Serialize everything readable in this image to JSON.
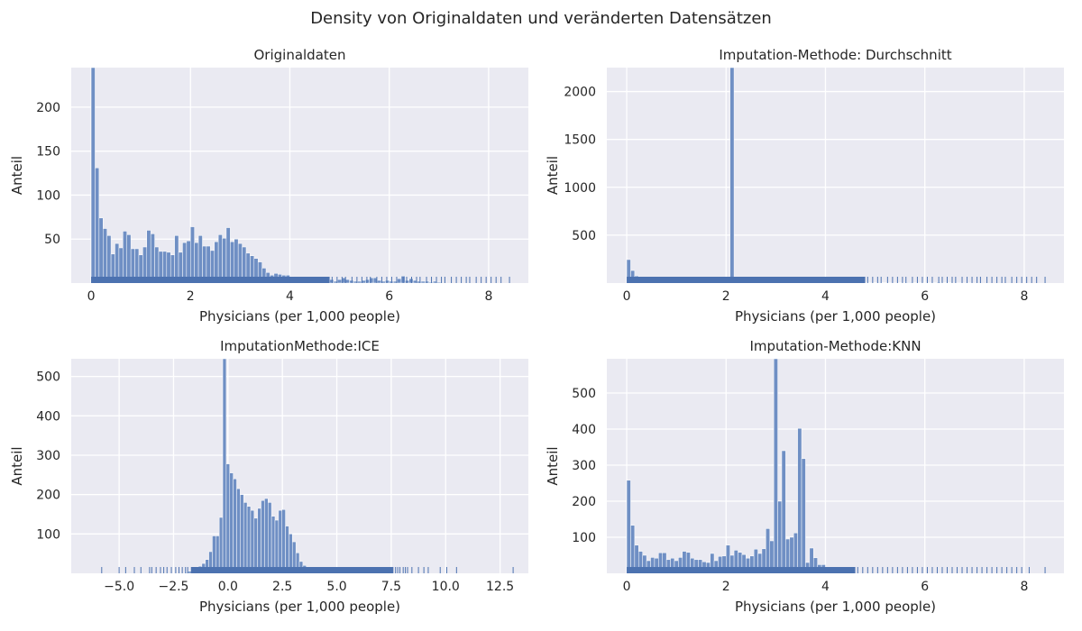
{
  "figure": {
    "title": "Density von Originaldaten und veränderten Datensätzen",
    "colors": {
      "bar": "#6f8fc4",
      "bar_edge": "#ffffff",
      "rug": "#4c72b0",
      "panel_bg": "#eaeaf2",
      "grid": "#ffffff"
    }
  },
  "chart_data": [
    {
      "type": "bar",
      "title": "Originaldaten",
      "xlabel": "Physicians (per 1,000 people)",
      "ylabel": "Anteil",
      "xlim": [
        -0.4,
        8.8
      ],
      "ylim": [
        0,
        245
      ],
      "xticks": [
        0,
        2,
        4,
        6,
        8
      ],
      "yticks": [
        50,
        100,
        150,
        200
      ],
      "bin_start": 0,
      "bin_width": 0.08,
      "values": [
        245,
        131,
        74,
        62,
        54,
        33,
        45,
        40,
        59,
        55,
        39,
        39,
        32,
        41,
        60,
        56,
        41,
        36,
        36,
        35,
        32,
        54,
        35,
        46,
        48,
        64,
        46,
        54,
        42,
        42,
        37,
        47,
        55,
        51,
        63,
        47,
        50,
        45,
        41,
        34,
        31,
        28,
        24,
        17,
        12,
        9,
        11,
        10,
        9,
        9,
        7,
        5,
        3,
        4,
        4,
        3,
        2,
        3,
        2,
        3,
        4,
        2,
        4,
        6,
        4,
        3,
        2,
        2,
        3,
        4,
        6,
        6,
        3,
        2,
        3,
        2,
        2,
        5,
        8,
        3,
        5,
        3,
        2,
        2,
        2,
        1,
        2,
        1
      ],
      "grid": true,
      "rug": [
        [
          0,
          4.8
        ],
        [
          4.85,
          4.95,
          5.05,
          5.12,
          5.25,
          5.35,
          5.45,
          5.55,
          5.62,
          5.75,
          5.85,
          5.95,
          6.05,
          6.15,
          6.28,
          6.35,
          6.45,
          6.55,
          6.62,
          6.75,
          6.85,
          6.95,
          7.05,
          7.12,
          7.25,
          7.35,
          7.45,
          7.55,
          7.62,
          7.75,
          7.85,
          7.95,
          8.05,
          8.15,
          8.25,
          8.42
        ]
      ]
    },
    {
      "type": "bar",
      "title": "Imputation-Methode: Durchschnitt",
      "xlabel": "Physicians (per 1,000 people)",
      "ylabel": "Anteil",
      "xlim": [
        -0.4,
        8.8
      ],
      "ylim": [
        0,
        2250
      ],
      "xticks": [
        0,
        2,
        4,
        6,
        8
      ],
      "yticks": [
        500,
        1000,
        1500,
        2000
      ],
      "bin_start": 0,
      "bin_width": 0.08,
      "values": [
        245,
        131,
        74,
        62,
        54,
        33,
        45,
        40,
        59,
        55,
        39,
        39,
        32,
        41,
        60,
        56,
        41,
        36,
        36,
        35,
        32,
        54,
        35,
        46,
        48,
        64,
        2250,
        54,
        42,
        42,
        37,
        47,
        55,
        51,
        63,
        47,
        50,
        45,
        41,
        34,
        31,
        28,
        24,
        17,
        12,
        9,
        11,
        10,
        9,
        9,
        7,
        5,
        3,
        4,
        4,
        3,
        2,
        3,
        2,
        3,
        4,
        2,
        4,
        6,
        4,
        3,
        2,
        2,
        3,
        4,
        6,
        6,
        3,
        2,
        3,
        2,
        2,
        5,
        8,
        3,
        5,
        3,
        2,
        2,
        2,
        1,
        2,
        1
      ],
      "grid": true,
      "rug": [
        [
          0,
          4.8
        ],
        [
          4.85,
          4.95,
          5.05,
          5.12,
          5.25,
          5.35,
          5.45,
          5.55,
          5.62,
          5.75,
          5.85,
          5.95,
          6.05,
          6.15,
          6.28,
          6.35,
          6.45,
          6.55,
          6.62,
          6.75,
          6.85,
          6.95,
          7.05,
          7.12,
          7.25,
          7.35,
          7.45,
          7.55,
          7.62,
          7.75,
          7.85,
          7.95,
          8.05,
          8.15,
          8.25,
          8.42
        ]
      ]
    },
    {
      "type": "bar",
      "title": "ImputationMethode:ICE",
      "xlabel": "Physicians (per 1,000 people)",
      "ylabel": "Anteil",
      "xlim": [
        -7.2,
        13.8
      ],
      "ylim": [
        0,
        545
      ],
      "xticks": [
        -5.0,
        -2.5,
        0.0,
        2.5,
        5.0,
        7.5,
        10.0,
        12.5
      ],
      "yticks": [
        100,
        200,
        300,
        400,
        500
      ],
      "bin_start": -2.0,
      "bin_width": 0.16,
      "values": [
        2,
        5,
        8,
        12,
        18,
        25,
        35,
        55,
        95,
        95,
        142,
        545,
        278,
        255,
        240,
        215,
        200,
        180,
        170,
        160,
        140,
        165,
        185,
        190,
        180,
        145,
        135,
        160,
        162,
        120,
        100,
        80,
        52,
        30,
        20,
        12,
        10,
        8,
        6,
        10,
        5,
        8,
        12,
        8,
        5,
        3,
        6,
        4,
        3,
        4,
        3,
        2,
        1,
        2
      ],
      "grid": true,
      "rug": [
        [
          -1.7,
          7.6
        ],
        [
          -5.8,
          -5.0,
          -4.7,
          -4.3,
          -4.0,
          -3.6,
          -3.5,
          -3.3,
          -3.1,
          -2.95,
          -2.8,
          -2.6,
          -2.4,
          -2.25,
          -2.1,
          -1.95,
          -1.85,
          7.7,
          7.8,
          7.9,
          8.05,
          8.15,
          8.25,
          8.45,
          8.75,
          9.0,
          9.2,
          9.75,
          10.05,
          10.5,
          13.1
        ]
      ]
    },
    {
      "type": "bar",
      "title": "Imputation-Methode:KNN",
      "xlabel": "Physicians (per 1,000 people)",
      "ylabel": "Anteil",
      "xlim": [
        -0.4,
        8.8
      ],
      "ylim": [
        0,
        595
      ],
      "xticks": [
        0,
        2,
        4,
        6,
        8
      ],
      "yticks": [
        100,
        200,
        300,
        400,
        500
      ],
      "bin_start": 0,
      "bin_width": 0.08,
      "values": [
        258,
        133,
        78,
        61,
        50,
        35,
        44,
        42,
        57,
        57,
        38,
        42,
        35,
        44,
        61,
        58,
        42,
        38,
        38,
        32,
        30,
        55,
        35,
        47,
        48,
        78,
        50,
        64,
        58,
        52,
        42,
        48,
        67,
        55,
        68,
        124,
        90,
        595,
        200,
        340,
        95,
        100,
        112,
        402,
        318,
        30,
        70,
        43,
        24,
        24,
        10,
        5,
        3,
        2,
        2,
        1
      ],
      "grid": true,
      "rug": [
        [
          0,
          4.6
        ],
        [
          4.65,
          4.75,
          4.85,
          4.95,
          5.05,
          5.15,
          5.25,
          5.35,
          5.45,
          5.55,
          5.65,
          5.75,
          5.85,
          5.95,
          6.05,
          6.15,
          6.25,
          6.35,
          6.45,
          6.55,
          6.65,
          6.75,
          6.85,
          6.95,
          7.05,
          7.15,
          7.25,
          7.35,
          7.45,
          7.55,
          7.65,
          7.75,
          7.85,
          7.95,
          8.1,
          8.42
        ]
      ]
    }
  ]
}
